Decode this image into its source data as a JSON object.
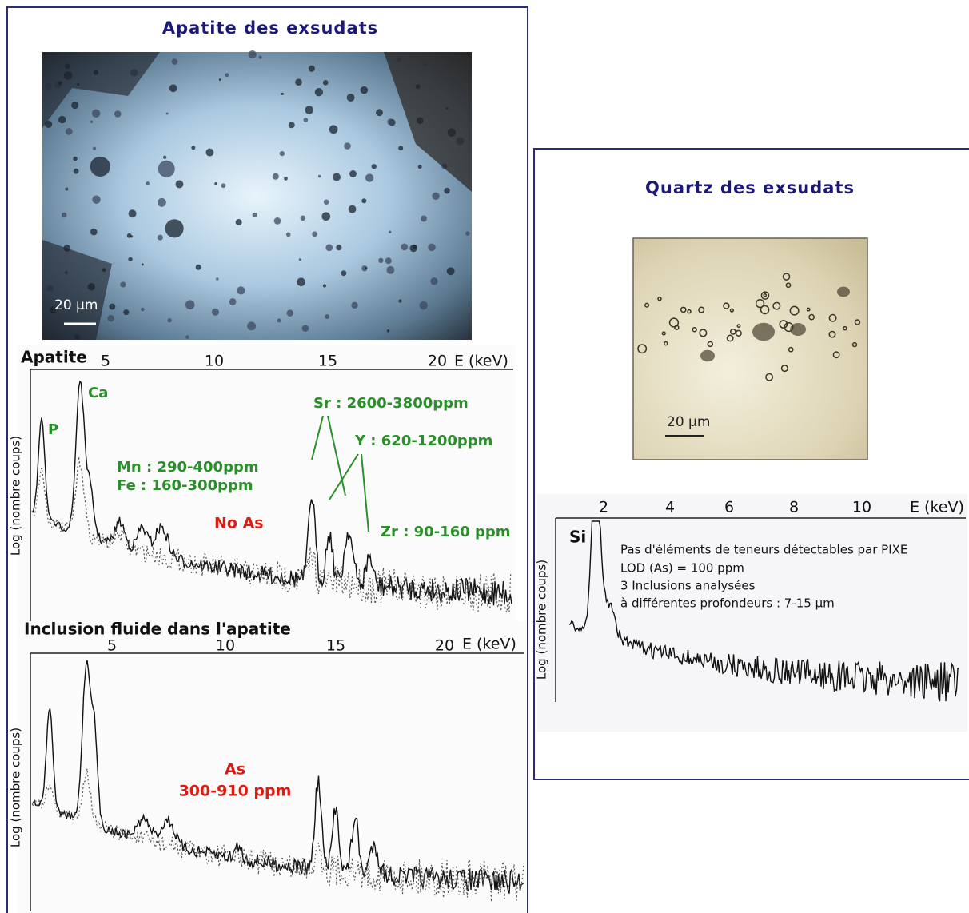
{
  "left_panel": {
    "title": "Apatite des exsudats",
    "photo": {
      "scale_label": "20 µm"
    },
    "spectrum_1": {
      "title": "Apatite",
      "x_ticks": [
        "5",
        "10",
        "15",
        "20"
      ],
      "x_axis_label": "E (keV)",
      "y_axis_label": "Log (nombre coups)",
      "annotations": [
        "P",
        "Ca",
        "Mn : 290-400ppm",
        "Fe : 160-300ppm",
        "No As",
        "Sr : 2600-3800ppm",
        "Y : 620-1200ppm",
        "Zr : 90-160 ppm"
      ]
    },
    "spectrum_2": {
      "title": "Inclusion fluide dans l'apatite",
      "x_ticks": [
        "5",
        "10",
        "15",
        "20"
      ],
      "x_axis_label": "E (keV)",
      "y_axis_label": "Log (nombre coups)",
      "annotations": [
        "As",
        "300-910 ppm"
      ]
    }
  },
  "right_panel": {
    "title": "Quartz des exsudats",
    "photo": {
      "scale_label": "20 µm"
    },
    "spectrum": {
      "x_ticks": [
        "2",
        "4",
        "6",
        "8",
        "10"
      ],
      "x_axis_label": "E (keV)",
      "y_axis_label": "Log (nombre coups)",
      "annotations": [
        "Si"
      ],
      "notes": [
        "Pas d'éléments de teneurs détectables par PIXE",
        "LOD (As) = 100 ppm",
        "3 Inclusions analysées",
        "à différentes profondeurs : 7-15 µm"
      ]
    }
  }
}
